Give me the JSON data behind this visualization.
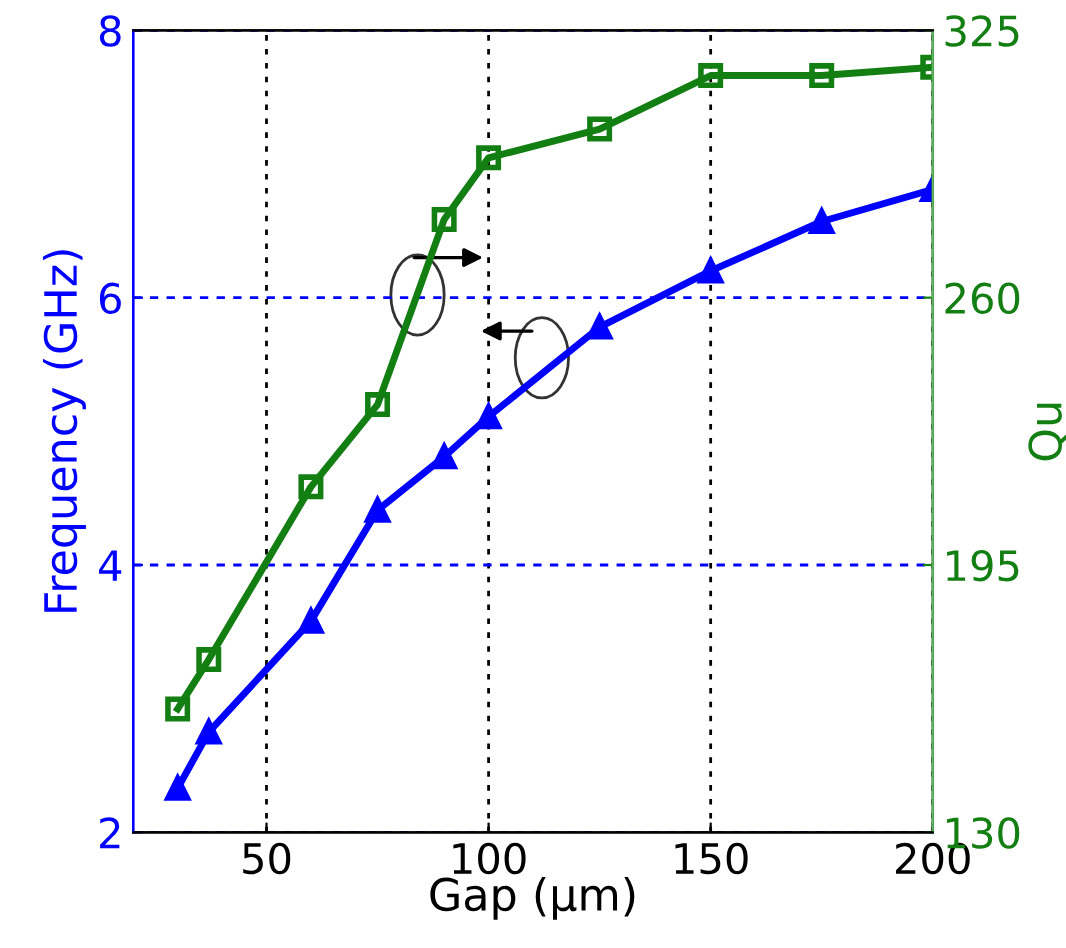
{
  "chart_data": {
    "type": "line",
    "xlabel": "Gap (μm)",
    "ylabel": "Frequency (GHz)",
    "y2label": "Qu",
    "x": [
      30,
      37,
      60,
      75,
      90,
      100,
      125,
      150,
      175,
      200
    ],
    "series": [
      {
        "color": "#0000ff",
        "marker": "triangle",
        "values": [
          2.33,
          2.75,
          3.58,
          4.41,
          4.81,
          5.11,
          5.78,
          6.2,
          6.57,
          6.81
        ]
      },
      {
        "color": "#137f13",
        "marker": "square",
        "axis": "y2",
        "values": [
          160,
          172,
          214,
          234,
          279,
          294,
          301,
          314,
          314,
          316
        ]
      }
    ],
    "xlim": [
      20,
      200
    ],
    "xticks": [
      50,
      100,
      150,
      200
    ],
    "ylim": [
      2,
      8
    ],
    "yticks": [
      2,
      4,
      6,
      8
    ],
    "y2lim": [
      130,
      325
    ],
    "y2ticks": [
      130,
      195,
      260,
      325
    ],
    "grid": true,
    "legend": false,
    "line_style": "solid"
  }
}
